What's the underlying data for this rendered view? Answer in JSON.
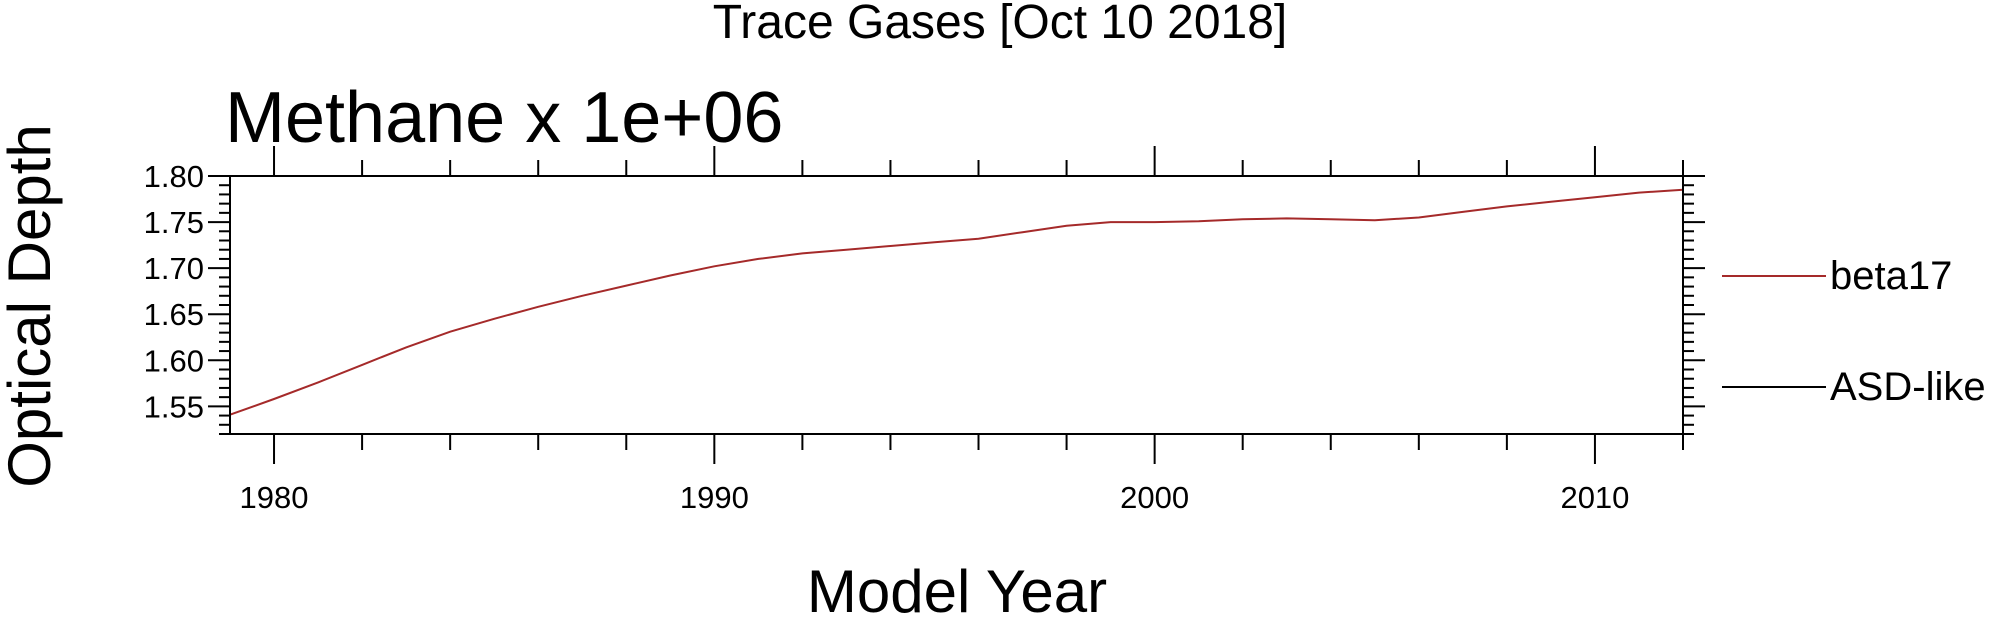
{
  "chart_data": {
    "type": "line",
    "suptitle": "Trace Gases [Oct 10 2018]",
    "title": "Methane x 1e+06",
    "xlabel": "Model Year",
    "ylabel": "Optical Depth",
    "xlim": [
      1979,
      2012
    ],
    "ylim": [
      1.52,
      1.8
    ],
    "xticks": [
      1980,
      1990,
      2000,
      2010
    ],
    "yticks": [
      "1.55",
      "1.60",
      "1.65",
      "1.70",
      "1.75",
      "1.80"
    ],
    "legend_position": "right",
    "series": [
      {
        "name": "beta17",
        "color": "#a52a2a",
        "x": [
          1979,
          1980,
          1981,
          1982,
          1983,
          1984,
          1985,
          1986,
          1987,
          1988,
          1989,
          1990,
          1991,
          1992,
          1993,
          1994,
          1995,
          1996,
          1997,
          1998,
          1999,
          2000,
          2001,
          2002,
          2003,
          2004,
          2005,
          2006,
          2007,
          2008,
          2009,
          2010,
          2011,
          2012
        ],
        "y": [
          1.541,
          1.558,
          1.576,
          1.595,
          1.614,
          1.631,
          1.645,
          1.658,
          1.67,
          1.681,
          1.692,
          1.702,
          1.71,
          1.716,
          1.72,
          1.724,
          1.728,
          1.732,
          1.739,
          1.746,
          1.75,
          1.75,
          1.751,
          1.753,
          1.754,
          1.753,
          1.752,
          1.755,
          1.761,
          1.767,
          1.772,
          1.777,
          1.782,
          1.785
        ]
      },
      {
        "name": "ASD-like",
        "color": "#000000",
        "x": [],
        "y": []
      }
    ]
  }
}
